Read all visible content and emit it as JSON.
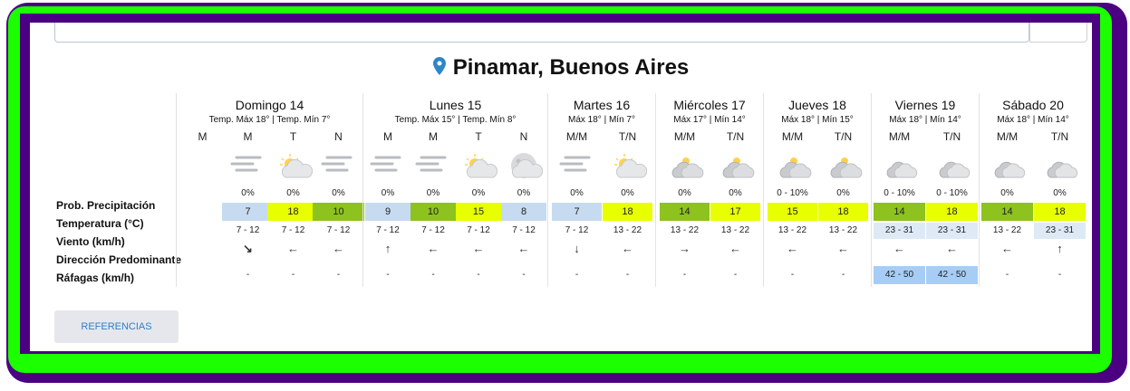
{
  "location": {
    "name": "Pinamar, Buenos Aires",
    "pin_color": "#2e86c9"
  },
  "row_labels": [
    "Prob. Precipitación",
    "Temperatura (°C)",
    "Viento (km/h)",
    "Dirección Predominante",
    "Ráfagas (km/h)"
  ],
  "colors": {
    "temp_7_9": "#c6dbf0",
    "temp_8": "#c6dbf0",
    "temp_10": "#8dc21f",
    "temp_14": "#8dc21f",
    "temp_15_18": "#e8ff00",
    "wind_high": "#ddeaf5",
    "gust_high": "#a6cdf5"
  },
  "references_label": "REFERENCIAS",
  "days": [
    {
      "name": "Domingo 14",
      "sub": "Temp. Máx 18° | Temp. Mín 7°",
      "cols": [
        {
          "period": "M",
          "icon": "none",
          "prob": "",
          "temp": "",
          "temp_color": "",
          "wind": "",
          "wind_color": "",
          "dir": "",
          "gust": "",
          "gust_color": ""
        },
        {
          "period": "M",
          "icon": "fog",
          "prob": "0%",
          "temp": "7",
          "temp_color": "#c6dbf0",
          "wind": "7 - 12",
          "wind_color": "",
          "dir": "↘",
          "gust": "-",
          "gust_color": ""
        },
        {
          "period": "T",
          "icon": "sun-cloud",
          "prob": "0%",
          "temp": "18",
          "temp_color": "#e8ff00",
          "wind": "7 - 12",
          "wind_color": "",
          "dir": "←",
          "gust": "-",
          "gust_color": ""
        },
        {
          "period": "N",
          "icon": "fog",
          "prob": "0%",
          "temp": "10",
          "temp_color": "#8dc21f",
          "wind": "7 - 12",
          "wind_color": "",
          "dir": "←",
          "gust": "-",
          "gust_color": ""
        }
      ]
    },
    {
      "name": "Lunes 15",
      "sub": "Temp. Máx 15° | Temp. Mín 8°",
      "cols": [
        {
          "period": "M",
          "icon": "fog",
          "prob": "0%",
          "temp": "9",
          "temp_color": "#c6dbf0",
          "wind": "7 - 12",
          "wind_color": "",
          "dir": "↑",
          "gust": "-",
          "gust_color": ""
        },
        {
          "period": "M",
          "icon": "fog",
          "prob": "0%",
          "temp": "10",
          "temp_color": "#8dc21f",
          "wind": "7 - 12",
          "wind_color": "",
          "dir": "←",
          "gust": "-",
          "gust_color": ""
        },
        {
          "period": "T",
          "icon": "sun-cloud",
          "prob": "0%",
          "temp": "15",
          "temp_color": "#e8ff00",
          "wind": "7 - 12",
          "wind_color": "",
          "dir": "←",
          "gust": "-",
          "gust_color": ""
        },
        {
          "period": "N",
          "icon": "moon-cloud",
          "prob": "0%",
          "temp": "8",
          "temp_color": "#c6dbf0",
          "wind": "7 - 12",
          "wind_color": "",
          "dir": "←",
          "gust": "-",
          "gust_color": ""
        }
      ]
    },
    {
      "name": "Martes 16",
      "sub": "Máx 18° | Mín 7°",
      "cols": [
        {
          "period": "M/M",
          "icon": "fog",
          "prob": "0%",
          "temp": "7",
          "temp_color": "#c6dbf0",
          "wind": "7 - 12",
          "wind_color": "",
          "dir": "↓",
          "gust": "-",
          "gust_color": ""
        },
        {
          "period": "T/N",
          "icon": "sun-cloud",
          "prob": "0%",
          "temp": "18",
          "temp_color": "#e8ff00",
          "wind": "13 - 22",
          "wind_color": "",
          "dir": "←",
          "gust": "-",
          "gust_color": ""
        }
      ]
    },
    {
      "name": "Miércoles 17",
      "sub": "Máx 17° | Mín 14°",
      "cols": [
        {
          "period": "M/M",
          "icon": "cloudy-sun",
          "prob": "0%",
          "temp": "14",
          "temp_color": "#8dc21f",
          "wind": "13 - 22",
          "wind_color": "",
          "dir": "→",
          "gust": "-",
          "gust_color": ""
        },
        {
          "period": "T/N",
          "icon": "cloudy-sun",
          "prob": "0%",
          "temp": "17",
          "temp_color": "#e8ff00",
          "wind": "13 - 22",
          "wind_color": "",
          "dir": "←",
          "gust": "-",
          "gust_color": ""
        }
      ]
    },
    {
      "name": "Jueves 18",
      "sub": "Máx 18° | Mín 15°",
      "cols": [
        {
          "period": "M/M",
          "icon": "cloudy-sun",
          "prob": "0 - 10%",
          "temp": "15",
          "temp_color": "#e8ff00",
          "wind": "13 - 22",
          "wind_color": "",
          "dir": "←",
          "gust": "-",
          "gust_color": ""
        },
        {
          "period": "T/N",
          "icon": "cloudy-sun",
          "prob": "0%",
          "temp": "18",
          "temp_color": "#e8ff00",
          "wind": "13 - 22",
          "wind_color": "",
          "dir": "←",
          "gust": "-",
          "gust_color": ""
        }
      ]
    },
    {
      "name": "Viernes 19",
      "sub": "Máx 18° | Mín 14°",
      "cols": [
        {
          "period": "M/M",
          "icon": "cloudy",
          "prob": "0 - 10%",
          "temp": "14",
          "temp_color": "#8dc21f",
          "wind": "23 - 31",
          "wind_color": "#ddeaf5",
          "dir": "←",
          "gust": "42 - 50",
          "gust_color": "#a6cdf5"
        },
        {
          "period": "T/N",
          "icon": "cloudy",
          "prob": "0 - 10%",
          "temp": "18",
          "temp_color": "#e8ff00",
          "wind": "23 - 31",
          "wind_color": "#ddeaf5",
          "dir": "←",
          "gust": "42 - 50",
          "gust_color": "#a6cdf5"
        }
      ]
    },
    {
      "name": "Sábado 20",
      "sub": "Máx 18° | Mín 14°",
      "cols": [
        {
          "period": "M/M",
          "icon": "cloudy",
          "prob": "0%",
          "temp": "14",
          "temp_color": "#8dc21f",
          "wind": "13 - 22",
          "wind_color": "",
          "dir": "←",
          "gust": "-",
          "gust_color": ""
        },
        {
          "period": "T/N",
          "icon": "cloudy",
          "prob": "0%",
          "temp": "18",
          "temp_color": "#e8ff00",
          "wind": "23 - 31",
          "wind_color": "#ddeaf5",
          "dir": "↑",
          "gust": "-",
          "gust_color": ""
        }
      ]
    }
  ]
}
